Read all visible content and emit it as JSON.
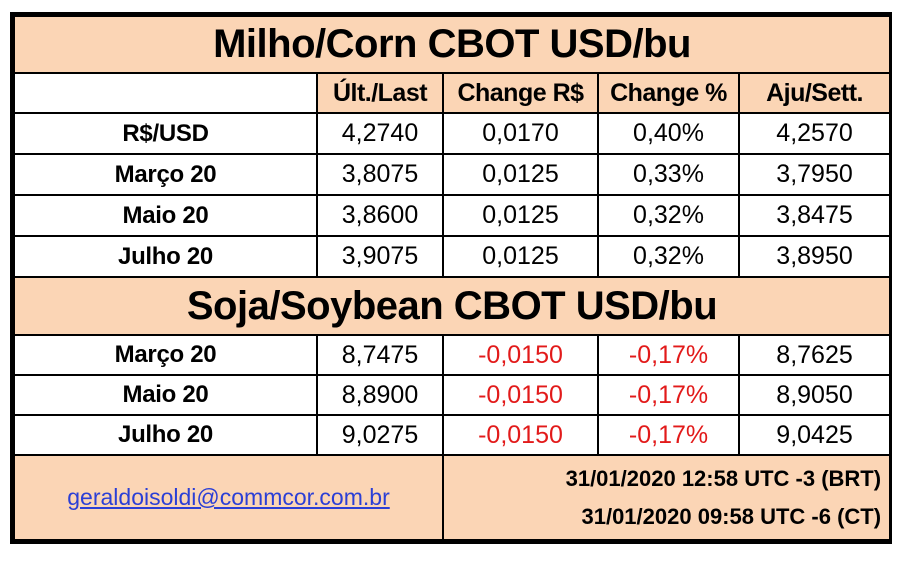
{
  "corn": {
    "title": "Milho/Corn CBOT USD/bu",
    "headers": {
      "blank": "",
      "last": "Últ./Last",
      "change_rs": "Change R$",
      "change_pct": "Change %",
      "settle": "Aju/Sett."
    },
    "rows": [
      {
        "label": "R$/USD",
        "last": "4,2740",
        "change_rs": "0,0170",
        "change_pct": "0,40%",
        "settle": "4,2570"
      },
      {
        "label": "Março 20",
        "last": "3,8075",
        "change_rs": "0,0125",
        "change_pct": "0,33%",
        "settle": "3,7950"
      },
      {
        "label": "Maio 20",
        "last": "3,8600",
        "change_rs": "0,0125",
        "change_pct": "0,32%",
        "settle": "3,8475"
      },
      {
        "label": "Julho 20",
        "last": "3,9075",
        "change_rs": "0,0125",
        "change_pct": "0,32%",
        "settle": "3,8950"
      }
    ]
  },
  "soy": {
    "title": "Soja/Soybean CBOT USD/bu",
    "rows": [
      {
        "label": "Março 20",
        "last": "8,7475",
        "change_rs": "-0,0150",
        "change_pct": "-0,17%",
        "settle": "8,7625"
      },
      {
        "label": "Maio 20",
        "last": "8,8900",
        "change_rs": "-0,0150",
        "change_pct": "-0,17%",
        "settle": "8,9050"
      },
      {
        "label": "Julho 20",
        "last": "9,0275",
        "change_rs": "-0,0150",
        "change_pct": "-0,17%",
        "settle": "9,0425"
      }
    ]
  },
  "footer": {
    "email": "geraldoisoldi@commcor.com.br",
    "timestamp_brt": "31/01/2020 12:58  UTC -3 (BRT)",
    "timestamp_ct": "31/01/2020 09:58  UTC -6 (CT)"
  },
  "colors": {
    "header_fill": "#fbd5b5",
    "negative": "#e21a1a",
    "link": "#2b3fd6"
  }
}
